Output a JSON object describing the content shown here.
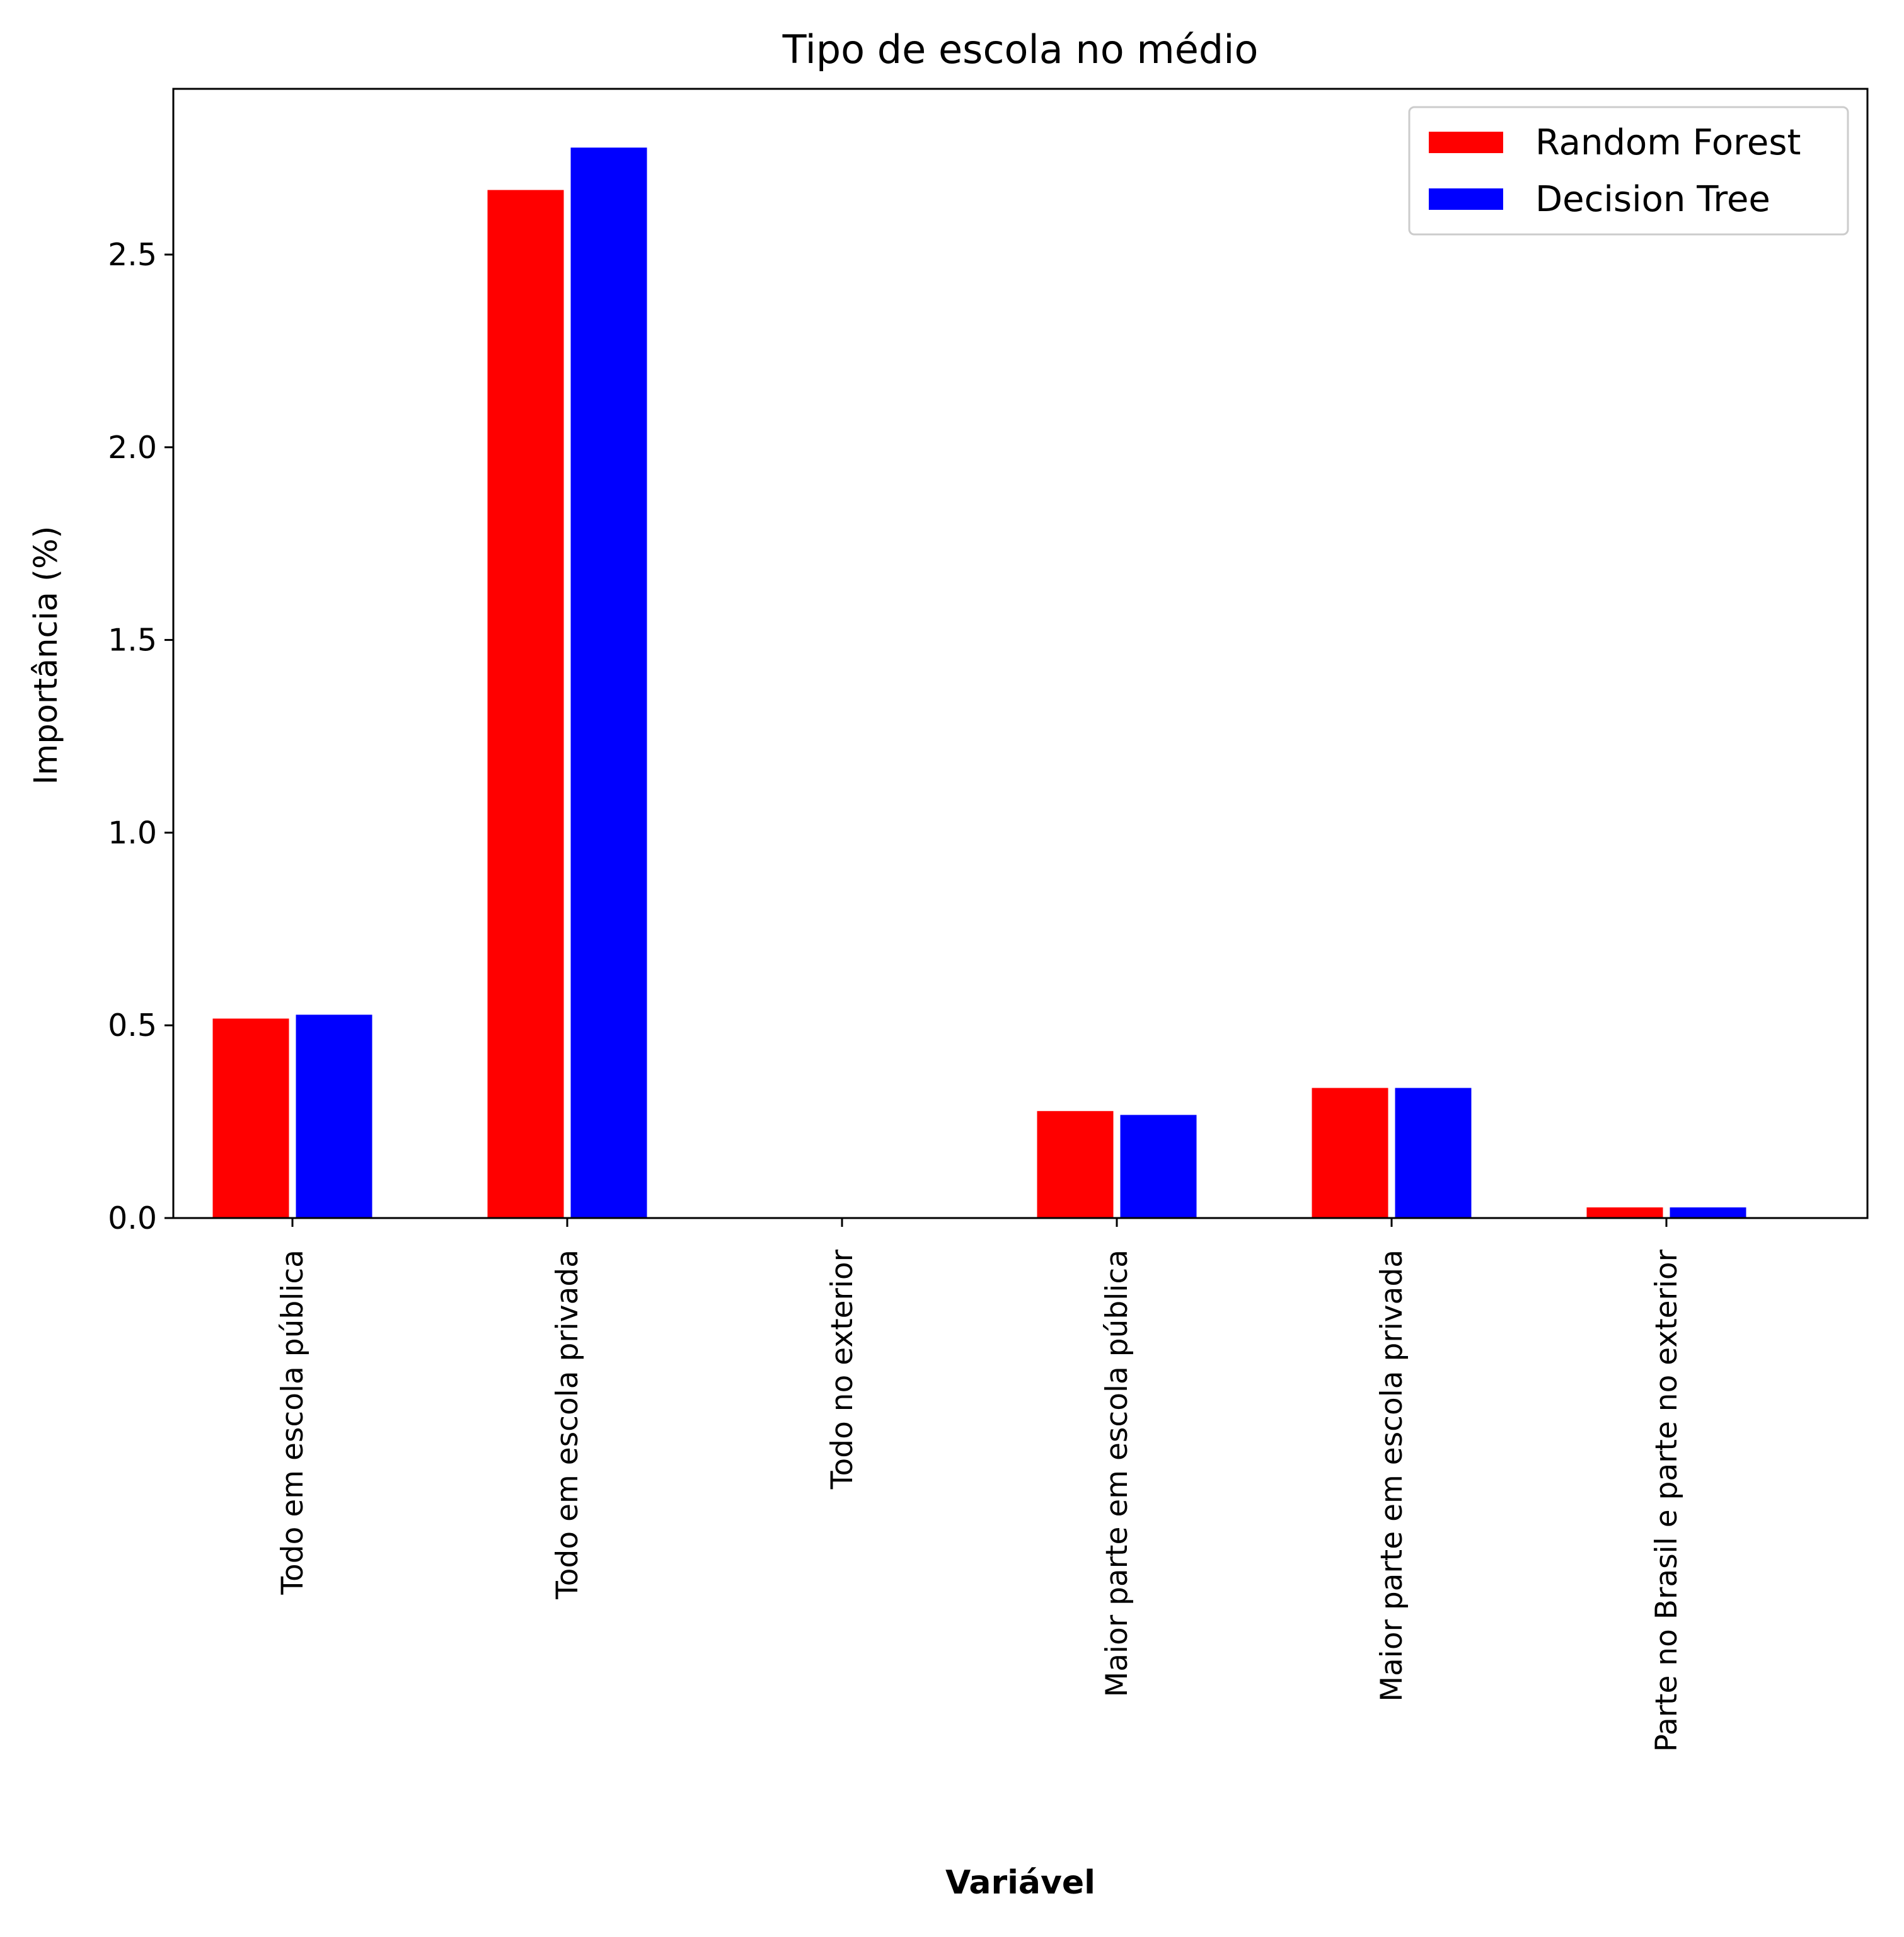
{
  "chart_data": {
    "type": "bar",
    "title": "Tipo de escola no médio",
    "xlabel": "Variável",
    "ylabel": "Importância (%)",
    "categories": [
      "Todo em escola pública",
      "Todo em escola privada",
      "Todo no exterior",
      "Maior parte em escola pública",
      "Maior parte em escola privada",
      "Parte no Brasil e parte no exterior"
    ],
    "series": [
      {
        "name": "Random Forest",
        "color": "#ff0000",
        "values": [
          0.52,
          2.67,
          0.0,
          0.28,
          0.34,
          0.03
        ]
      },
      {
        "name": "Decision Tree",
        "color": "#0000ff",
        "values": [
          0.53,
          2.78,
          0.0,
          0.27,
          0.34,
          0.03
        ]
      }
    ],
    "ylim": [
      0,
      2.93
    ],
    "yticks": [
      "0.0",
      "0.5",
      "1.0",
      "1.5",
      "2.0",
      "2.5"
    ],
    "grid": false,
    "legend_position": "top-right"
  }
}
